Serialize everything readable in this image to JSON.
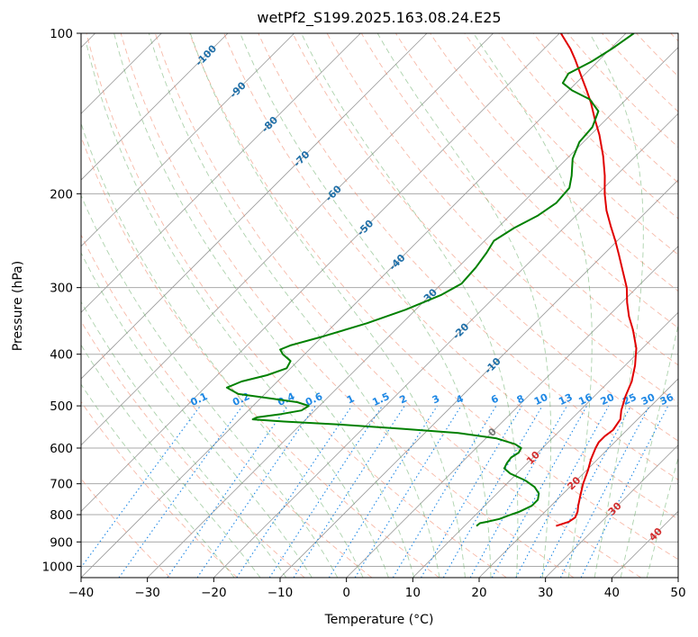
{
  "chart_data": {
    "type": "line",
    "title": "wetPf2_S199.2025.163.08.24.E25",
    "xlabel": "Temperature (°C)",
    "ylabel": "Pressure (hPa)",
    "xlim": [
      -40,
      50
    ],
    "ylim": [
      1050,
      100
    ],
    "y_scale": "log",
    "skew": 45,
    "x_ticks": [
      -40,
      -30,
      -20,
      -10,
      0,
      10,
      20,
      30,
      40,
      50
    ],
    "x_tick_labels": [
      "−40",
      "−30",
      "−20",
      "−10",
      "0",
      "10",
      "20",
      "30",
      "40",
      "50"
    ],
    "y_ticks": [
      100,
      200,
      300,
      400,
      500,
      600,
      700,
      800,
      900,
      1000
    ],
    "y_tick_labels": [
      "100",
      "200",
      "300",
      "400",
      "500",
      "600",
      "700",
      "800",
      "900",
      "1000"
    ],
    "grid": true,
    "series": [
      {
        "color": "#e00000",
        "points": [
          [
            840,
            23.8
          ],
          [
            825,
            25.1
          ],
          [
            810,
            25.4
          ],
          [
            790,
            24.9
          ],
          [
            770,
            24.1
          ],
          [
            740,
            23.0
          ],
          [
            700,
            21.5
          ],
          [
            660,
            20.2
          ],
          [
            630,
            19.0
          ],
          [
            600,
            18.0
          ],
          [
            585,
            17.6
          ],
          [
            570,
            17.6
          ],
          [
            555,
            17.9
          ],
          [
            530,
            17.4
          ],
          [
            510,
            16.2
          ],
          [
            480,
            14.7
          ],
          [
            450,
            13.4
          ],
          [
            420,
            11.5
          ],
          [
            390,
            9.1
          ],
          [
            360,
            5.8
          ],
          [
            340,
            3.2
          ],
          [
            320,
            0.8
          ],
          [
            300,
            -1.5
          ],
          [
            280,
            -4.5
          ],
          [
            260,
            -7.7
          ],
          [
            245,
            -10.3
          ],
          [
            230,
            -13.2
          ],
          [
            215,
            -16.2
          ],
          [
            200,
            -19.0
          ],
          [
            185,
            -21.7
          ],
          [
            170,
            -24.9
          ],
          [
            155,
            -28.7
          ],
          [
            145,
            -31.7
          ],
          [
            135,
            -34.8
          ],
          [
            128,
            -37.3
          ],
          [
            120,
            -40.4
          ],
          [
            112,
            -43.7
          ],
          [
            107,
            -46.0
          ],
          [
            100,
            -49.8
          ]
        ]
      },
      {
        "color": "#008000",
        "points": [
          [
            840,
            11.8
          ],
          [
            830,
            11.9
          ],
          [
            825,
            12.8
          ],
          [
            815,
            14.2
          ],
          [
            800,
            15.3
          ],
          [
            790,
            16.1
          ],
          [
            770,
            17.1
          ],
          [
            750,
            17.1
          ],
          [
            730,
            16.3
          ],
          [
            710,
            14.7
          ],
          [
            690,
            12.3
          ],
          [
            670,
            9.0
          ],
          [
            655,
            7.3
          ],
          [
            640,
            6.9
          ],
          [
            625,
            6.7
          ],
          [
            612,
            7.1
          ],
          [
            600,
            6.8
          ],
          [
            590,
            5.3
          ],
          [
            575,
            1.5
          ],
          [
            562,
            -5.0
          ],
          [
            552,
            -14.0
          ],
          [
            542,
            -24.0
          ],
          [
            535,
            -33.0
          ],
          [
            530,
            -38.0
          ],
          [
            525,
            -37.6
          ],
          [
            518,
            -34.5
          ],
          [
            510,
            -32.0
          ],
          [
            500,
            -31.6
          ],
          [
            492,
            -33.9
          ],
          [
            485,
            -38.0
          ],
          [
            475,
            -44.0
          ],
          [
            462,
            -46.7
          ],
          [
            450,
            -45.4
          ],
          [
            438,
            -42.5
          ],
          [
            425,
            -40.6
          ],
          [
            412,
            -41.1
          ],
          [
            400,
            -43.3
          ],
          [
            392,
            -44.4
          ],
          [
            385,
            -43.5
          ],
          [
            370,
            -39.8
          ],
          [
            350,
            -35.3
          ],
          [
            330,
            -31.5
          ],
          [
            310,
            -28.4
          ],
          [
            295,
            -27.0
          ],
          [
            275,
            -27.3
          ],
          [
            258,
            -27.9
          ],
          [
            245,
            -28.6
          ],
          [
            232,
            -27.5
          ],
          [
            220,
            -25.8
          ],
          [
            208,
            -24.9
          ],
          [
            195,
            -25.2
          ],
          [
            185,
            -26.7
          ],
          [
            172,
            -29.1
          ],
          [
            160,
            -30.6
          ],
          [
            150,
            -30.9
          ],
          [
            140,
            -32.4
          ],
          [
            133,
            -35.5
          ],
          [
            128,
            -39.5
          ],
          [
            124,
            -42.0
          ],
          [
            119,
            -42.6
          ],
          [
            113,
            -40.9
          ],
          [
            107,
            -39.8
          ],
          [
            100,
            -38.8
          ]
        ]
      }
    ],
    "dry_adiabat_labels": [
      "-100",
      "-90",
      "-80",
      "-70",
      "-60",
      "-50",
      "-40",
      "-30",
      "-20",
      "-10"
    ],
    "moist_adiabat_labels": [
      "0",
      "10",
      "20",
      "30",
      "40"
    ],
    "mixing_ratio_labels": [
      "0.1",
      "0.2",
      "0.4",
      "0.6",
      "1",
      "1.5",
      "2",
      "3",
      "4",
      "6",
      "8",
      "10",
      "13",
      "16",
      "20",
      "25",
      "30",
      "36"
    ],
    "colors": {
      "temperature": "#e00000",
      "dewpoint": "#008000",
      "isotherm": "#999999",
      "dry_adiabat": "#f08060",
      "moist_adiabat": "#5aa55a",
      "mixing_ratio": "#1e88e5",
      "isobar": "#aaaaaa"
    }
  }
}
